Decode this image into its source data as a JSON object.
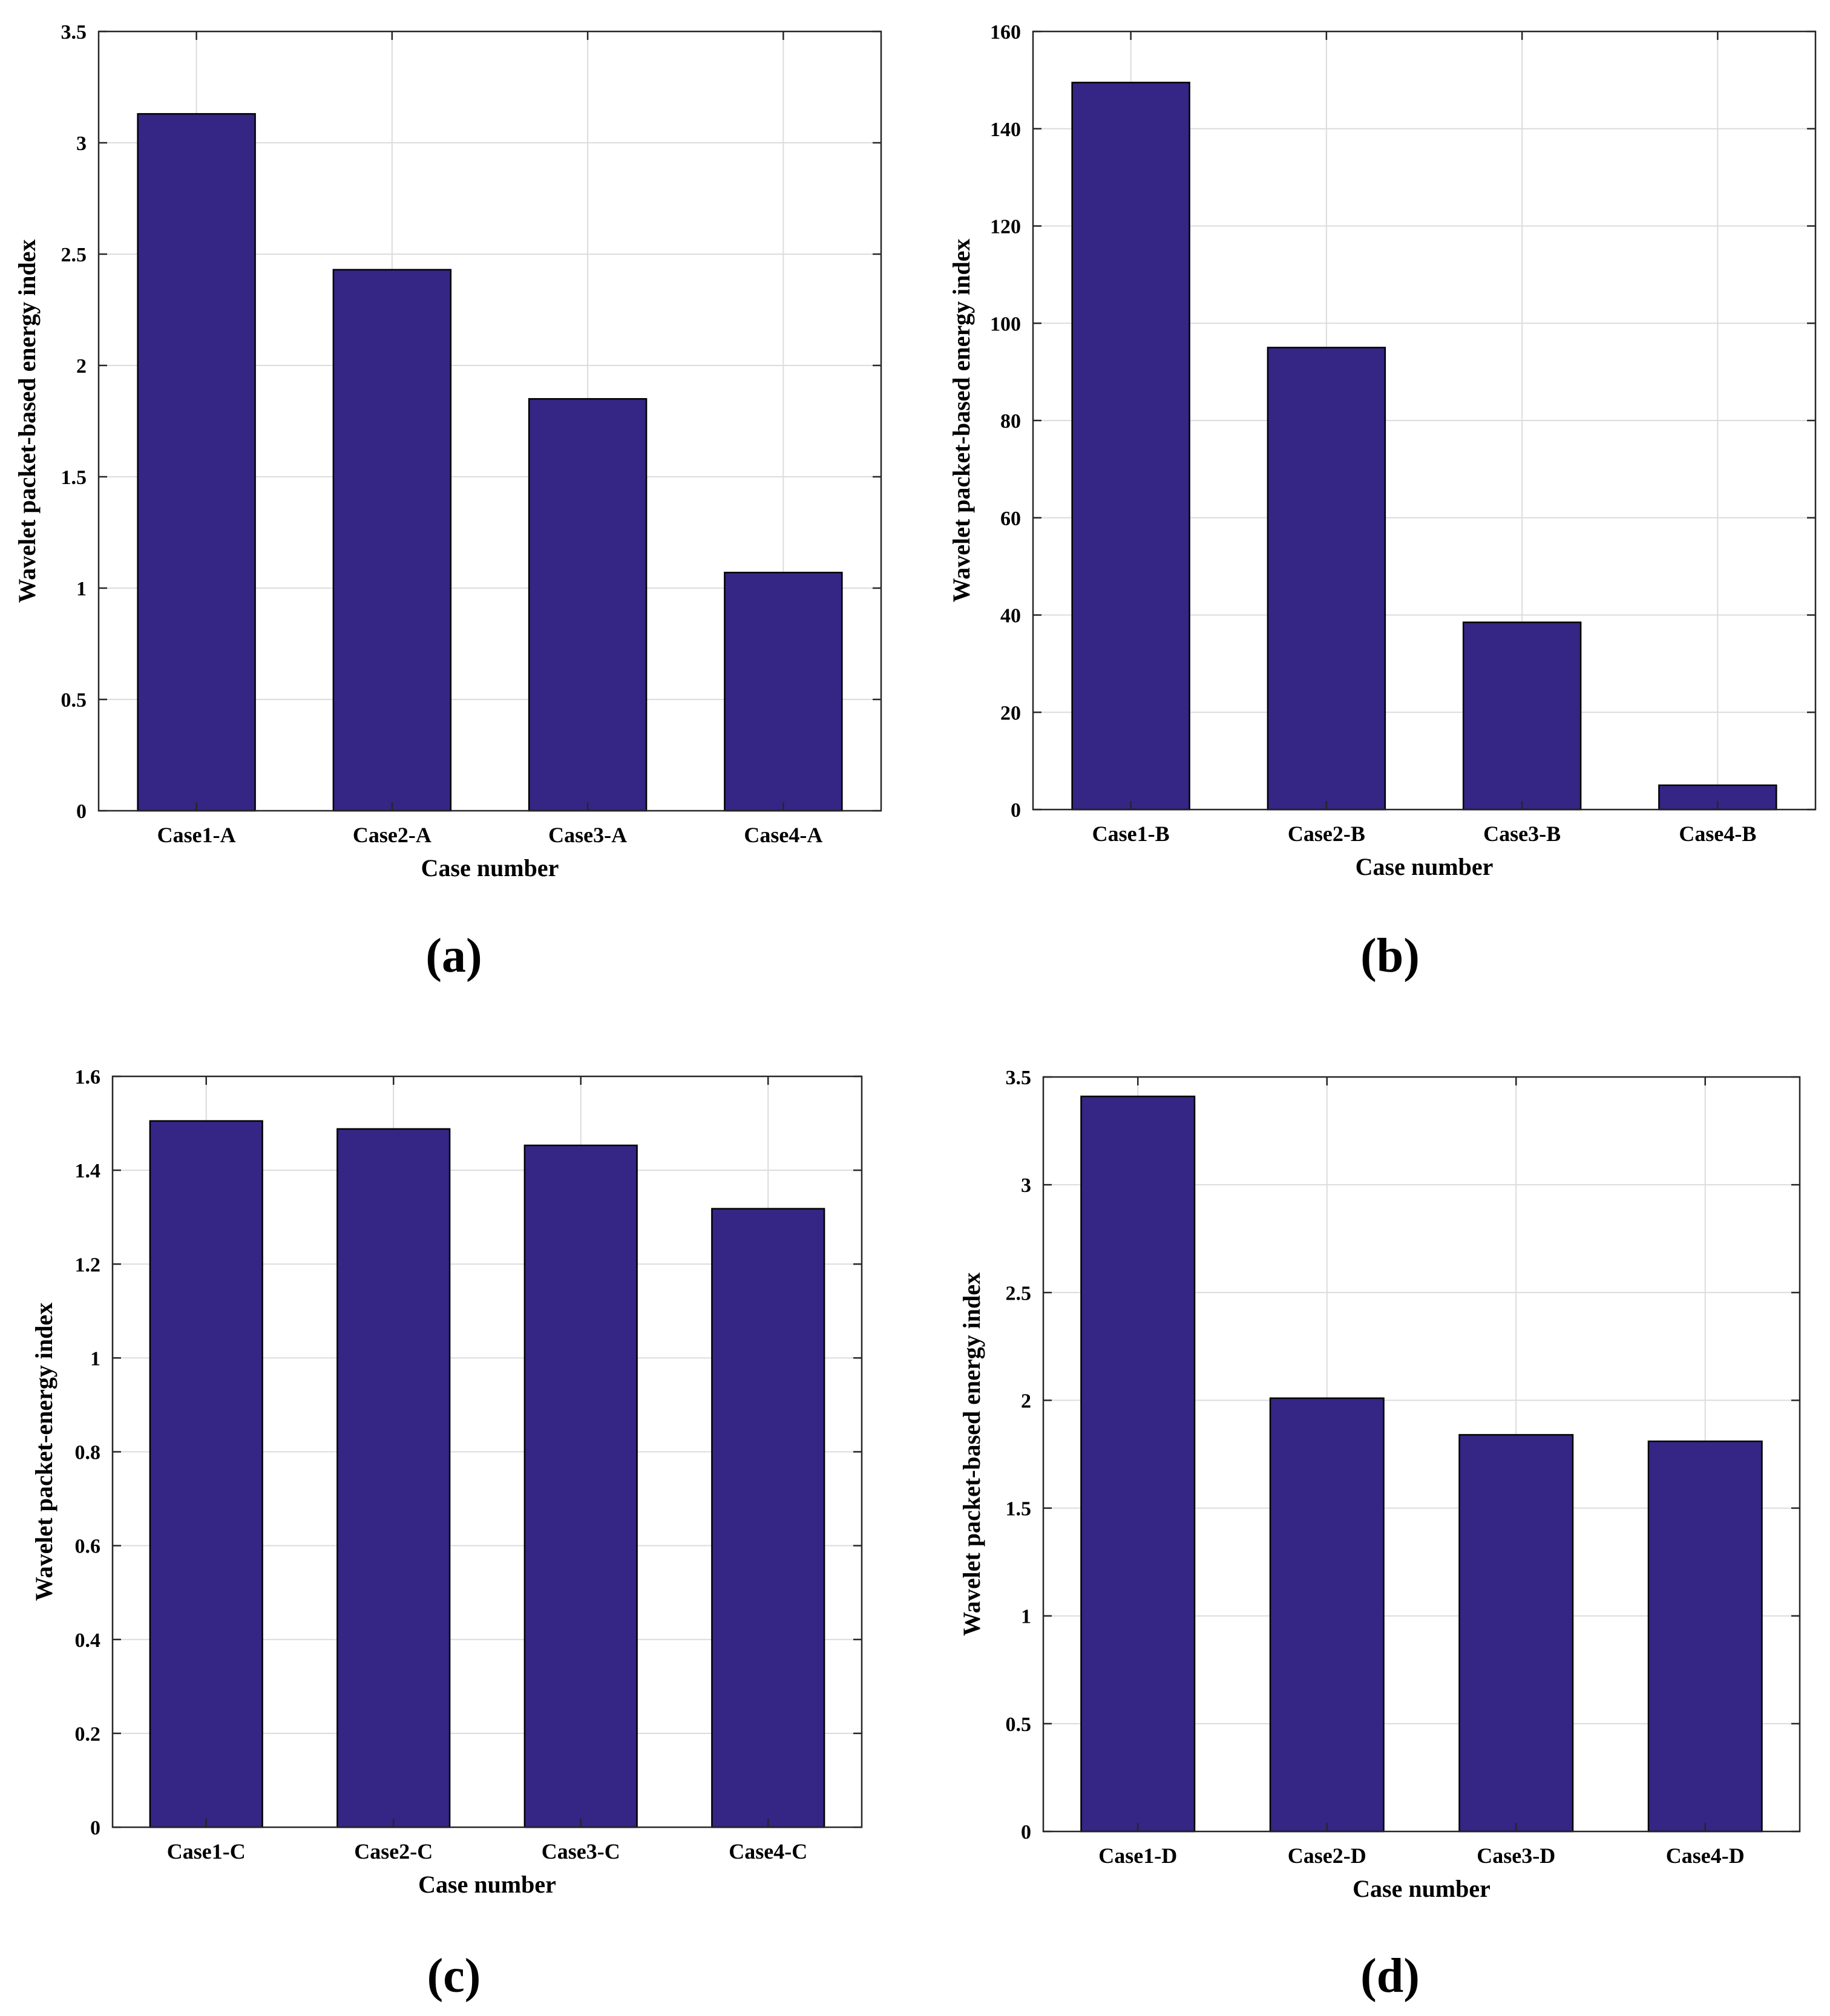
{
  "colors": {
    "bar": "#352585",
    "grid": "#dcdcdc",
    "axis": "#262626"
  },
  "chart_data": [
    {
      "type": "bar",
      "panel": "(a)",
      "title": "",
      "xlabel": "Case number",
      "ylabel": "Wavelet packet-based energy index",
      "categories": [
        "Case1-A",
        "Case2-A",
        "Case3-A",
        "Case4-A"
      ],
      "values": [
        3.13,
        2.43,
        1.85,
        1.07
      ],
      "ylim": [
        0,
        3.5
      ],
      "yticks": [
        0,
        0.5,
        1,
        1.5,
        2,
        2.5,
        3,
        3.5
      ],
      "ytick_labels": [
        "0",
        "0.5",
        "1",
        "1.5",
        "2",
        "2.5",
        "3",
        "3.5"
      ],
      "grid": true
    },
    {
      "type": "bar",
      "panel": "(b)",
      "title": "",
      "xlabel": "Case number",
      "ylabel": "Wavelet packet-based energy index",
      "categories": [
        "Case1-B",
        "Case2-B",
        "Case3-B",
        "Case4-B"
      ],
      "values": [
        149.5,
        95,
        38.5,
        5
      ],
      "ylim": [
        0,
        160
      ],
      "yticks": [
        0,
        20,
        40,
        60,
        80,
        100,
        120,
        140,
        160
      ],
      "ytick_labels": [
        "0",
        "20",
        "40",
        "60",
        "80",
        "100",
        "120",
        "140",
        "160"
      ],
      "grid": true
    },
    {
      "type": "bar",
      "panel": "(c)",
      "title": "",
      "xlabel": "Case number",
      "ylabel": "Wavelet packet-energy index",
      "categories": [
        "Case1-C",
        "Case2-C",
        "Case3-C",
        "Case4-C"
      ],
      "values": [
        1.505,
        1.488,
        1.453,
        1.318
      ],
      "ylim": [
        0,
        1.6
      ],
      "yticks": [
        0,
        0.2,
        0.4,
        0.6,
        0.8,
        1,
        1.2,
        1.4,
        1.6
      ],
      "ytick_labels": [
        "0",
        "0.2",
        "0.4",
        "0.6",
        "0.8",
        "1",
        "1.2",
        "1.4",
        "1.6"
      ],
      "grid": true
    },
    {
      "type": "bar",
      "panel": "(d)",
      "title": "",
      "xlabel": "Case number",
      "ylabel": "Wavelet packet-based energy index",
      "categories": [
        "Case1-D",
        "Case2-D",
        "Case3-D",
        "Case4-D"
      ],
      "values": [
        3.41,
        2.01,
        1.84,
        1.81
      ],
      "ylim": [
        0,
        3.5
      ],
      "yticks": [
        0,
        0.5,
        1,
        1.5,
        2,
        2.5,
        3,
        3.5
      ],
      "ytick_labels": [
        "0",
        "0.5",
        "1",
        "1.5",
        "2",
        "2.5",
        "3",
        "3.5"
      ],
      "grid": true
    }
  ]
}
